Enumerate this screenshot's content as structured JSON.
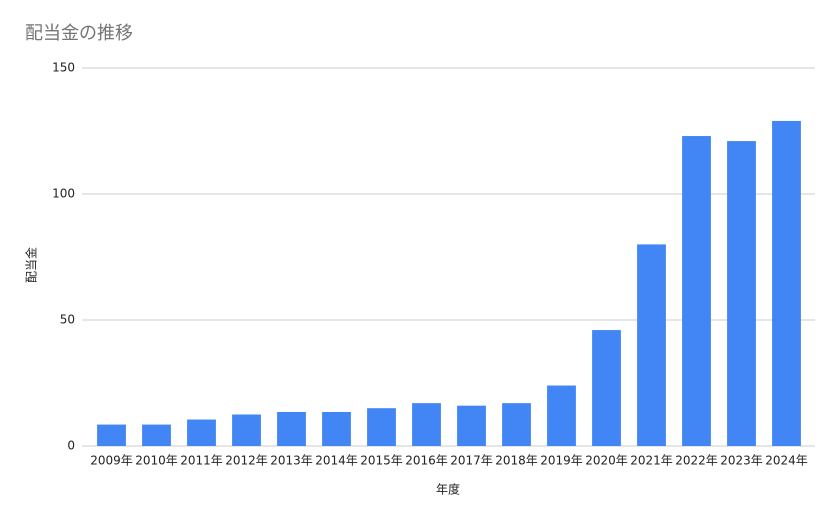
{
  "chart_data": {
    "type": "bar",
    "title": "配当金の推移",
    "x_label": "年度",
    "y_label": "配当金",
    "categories": [
      "2009年",
      "2010年",
      "2011年",
      "2012年",
      "2013年",
      "2014年",
      "2015年",
      "2016年",
      "2017年",
      "2018年",
      "2019年",
      "2020年",
      "2021年",
      "2022年",
      "2023年",
      "2024年"
    ],
    "values": [
      8.5,
      8.5,
      10.5,
      12.5,
      13.5,
      13.5,
      15,
      17,
      16,
      17,
      24,
      46,
      80,
      123,
      121,
      129
    ],
    "color": "#4285f4",
    "ylim": [
      0,
      150
    ],
    "yticks": [
      0,
      50,
      100,
      150
    ],
    "grid": true
  }
}
